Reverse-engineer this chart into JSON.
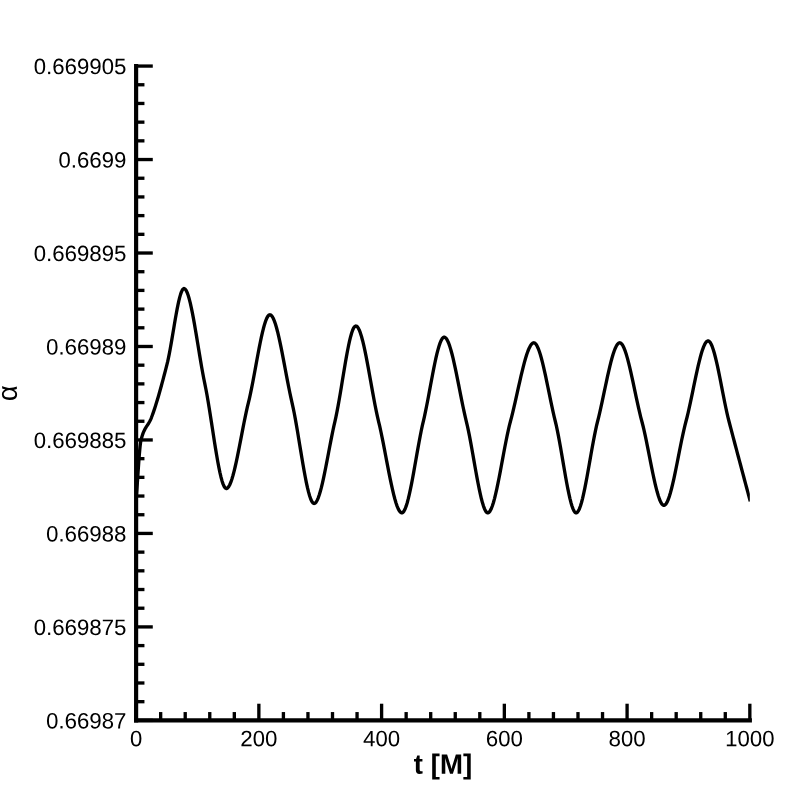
{
  "chart_data": {
    "type": "line",
    "xlabel": "t [M]",
    "ylabel": "α",
    "x": [
      0,
      8,
      25,
      50,
      78,
      112,
      147,
      183,
      218,
      254,
      290,
      324,
      358,
      395,
      433,
      468,
      502,
      538,
      573,
      610,
      648,
      683,
      717,
      752,
      788,
      824,
      860,
      896,
      932,
      966,
      1000
    ],
    "series": [
      {
        "color": "#000000",
        "values": [
          0.6698818,
          0.669885,
          0.6698862,
          0.669889,
          0.6698931,
          0.669888,
          0.6698824,
          0.669887,
          0.6698917,
          0.669887,
          0.6698816,
          0.669886,
          0.6698911,
          0.669886,
          0.6698811,
          0.669886,
          0.6698905,
          0.669886,
          0.6698811,
          0.669886,
          0.6698902,
          0.669886,
          0.6698811,
          0.669886,
          0.6698902,
          0.669886,
          0.6698815,
          0.669886,
          0.6698903,
          0.669886,
          0.6698818
        ]
      }
    ],
    "xlim": [
      0,
      1000
    ],
    "xticks": [
      0,
      200,
      400,
      600,
      800,
      1000
    ],
    "ylim": [
      0.66987,
      0.669905
    ],
    "yticks": [
      0.66987,
      0.669875,
      0.66988,
      0.669885,
      0.66989,
      0.669895,
      0.6699,
      0.669905
    ],
    "grid": false,
    "legend": false,
    "marker": "none",
    "line_style": "solid"
  }
}
